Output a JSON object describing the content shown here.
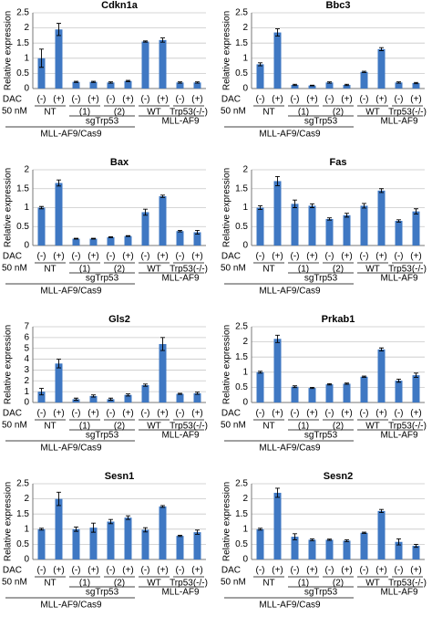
{
  "chart_data": [
    {
      "type": "bar",
      "title": "Cdkn1a",
      "y_label": "Relative expression",
      "color": "#3f78c3",
      "grid": true,
      "ylim": [
        0,
        2.5
      ],
      "yticks": [
        0,
        0.5,
        1,
        1.5,
        2,
        2.5
      ],
      "row_label": "DAC",
      "row_sublabel": "50 nM",
      "categories": [
        "(-)",
        "(+)",
        "(-)",
        "(+)",
        "(-)",
        "(+)",
        "(-)",
        "(+)",
        "(-)",
        "(+)"
      ],
      "groups": [
        "NT",
        "(1)",
        "(2)",
        "WT",
        "Trp53(-/-)"
      ],
      "subgroup": "sgTrp53",
      "lines": [
        "MLL-AF9/Cas9",
        "MLL-AF9"
      ],
      "values": [
        1.0,
        1.95,
        0.22,
        0.22,
        0.2,
        0.25,
        1.55,
        1.6,
        0.2,
        0.2
      ],
      "errors": [
        0.3,
        0.2,
        0.02,
        0.02,
        0.02,
        0.02,
        0.02,
        0.07,
        0.02,
        0.02
      ]
    },
    {
      "type": "bar",
      "title": "Bbc3",
      "y_label": "Relative expression",
      "color": "#3f78c3",
      "grid": true,
      "ylim": [
        0,
        2.5
      ],
      "yticks": [
        0,
        0.5,
        1,
        1.5,
        2,
        2.5
      ],
      "row_label": "DAC",
      "row_sublabel": "50 nM",
      "categories": [
        "(-)",
        "(+)",
        "(-)",
        "(+)",
        "(-)",
        "(+)",
        "(-)",
        "(+)",
        "(-)",
        "(+)"
      ],
      "groups": [
        "NT",
        "(1)",
        "(2)",
        "WT",
        "Trp53(-/-)"
      ],
      "subgroup": "sgTrp53",
      "lines": [
        "MLL-AF9/Cas9",
        "MLL-AF9"
      ],
      "values": [
        0.8,
        1.85,
        0.12,
        0.1,
        0.2,
        0.12,
        0.55,
        1.3,
        0.2,
        0.18
      ],
      "errors": [
        0.05,
        0.12,
        0.02,
        0.01,
        0.02,
        0.02,
        0.02,
        0.05,
        0.02,
        0.02
      ]
    },
    {
      "type": "bar",
      "title": "Bax",
      "y_label": "Relative expression",
      "color": "#3f78c3",
      "grid": true,
      "ylim": [
        0,
        2
      ],
      "yticks": [
        0,
        0.5,
        1,
        1.5,
        2
      ],
      "row_label": "DAC",
      "row_sublabel": "50 nM",
      "categories": [
        "(-)",
        "(+)",
        "(-)",
        "(+)",
        "(-)",
        "(+)",
        "(-)",
        "(+)",
        "(-)",
        "(+)"
      ],
      "groups": [
        "NT",
        "(1)",
        "(2)",
        "WT",
        "Trp53(-/-)"
      ],
      "subgroup": "sgTrp53",
      "lines": [
        "MLL-AF9/Cas9",
        "MLL-AF9"
      ],
      "values": [
        1.0,
        1.65,
        0.18,
        0.18,
        0.22,
        0.25,
        0.88,
        1.3,
        0.38,
        0.35
      ],
      "errors": [
        0.03,
        0.08,
        0.01,
        0.01,
        0.01,
        0.01,
        0.08,
        0.03,
        0.02,
        0.05
      ]
    },
    {
      "type": "bar",
      "title": "Fas",
      "y_label": "Relative expression",
      "color": "#3f78c3",
      "grid": true,
      "ylim": [
        0,
        2
      ],
      "yticks": [
        0,
        0.5,
        1,
        1.5,
        2
      ],
      "row_label": "DAC",
      "row_sublabel": "50 nM",
      "categories": [
        "(-)",
        "(+)",
        "(-)",
        "(+)",
        "(-)",
        "(+)",
        "(-)",
        "(+)",
        "(-)",
        "(+)"
      ],
      "groups": [
        "NT",
        "(1)",
        "(2)",
        "WT",
        "Trp53(-/-)"
      ],
      "subgroup": "sgTrp53",
      "lines": [
        "MLL-AF9/Cas9",
        "MLL-AF9"
      ],
      "values": [
        1.0,
        1.7,
        1.1,
        1.05,
        0.7,
        0.8,
        1.05,
        1.45,
        0.65,
        0.9
      ],
      "errors": [
        0.05,
        0.12,
        0.1,
        0.05,
        0.03,
        0.05,
        0.06,
        0.05,
        0.03,
        0.07
      ]
    },
    {
      "type": "bar",
      "title": "Gls2",
      "y_label": "Relative expression",
      "color": "#3f78c3",
      "grid": true,
      "ylim": [
        0,
        7
      ],
      "yticks": [
        0,
        1,
        2,
        3,
        4,
        5,
        6,
        7
      ],
      "row_label": "DAC",
      "row_sublabel": "50 nM",
      "categories": [
        "(-)",
        "(+)",
        "(-)",
        "(+)",
        "(-)",
        "(+)",
        "(-)",
        "(+)",
        "(-)",
        "(+)"
      ],
      "groups": [
        "NT",
        "(1)",
        "(2)",
        "WT",
        "Trp53(-/-)"
      ],
      "subgroup": "sgTrp53",
      "lines": [
        "MLL-AF9/Cas9",
        "MLL-AF9"
      ],
      "values": [
        1.0,
        3.6,
        0.3,
        0.6,
        0.3,
        0.7,
        1.6,
        5.4,
        0.8,
        0.85
      ],
      "errors": [
        0.3,
        0.4,
        0.1,
        0.1,
        0.1,
        0.1,
        0.1,
        0.6,
        0.05,
        0.1
      ]
    },
    {
      "type": "bar",
      "title": "Prkab1",
      "y_label": "Relative expression",
      "color": "#3f78c3",
      "grid": true,
      "ylim": [
        0,
        2.5
      ],
      "yticks": [
        0,
        0.5,
        1,
        1.5,
        2,
        2.5
      ],
      "row_label": "DAC",
      "row_sublabel": "50 nM",
      "categories": [
        "(-)",
        "(+)",
        "(-)",
        "(+)",
        "(-)",
        "(+)",
        "(-)",
        "(+)",
        "(-)",
        "(+)"
      ],
      "groups": [
        "NT",
        "(1)",
        "(2)",
        "WT",
        "Trp53(-/-)"
      ],
      "subgroup": "sgTrp53",
      "lines": [
        "MLL-AF9/Cas9",
        "MLL-AF9"
      ],
      "values": [
        1.0,
        2.1,
        0.52,
        0.48,
        0.6,
        0.62,
        0.85,
        1.75,
        0.72,
        0.9
      ],
      "errors": [
        0.03,
        0.12,
        0.03,
        0.02,
        0.02,
        0.02,
        0.02,
        0.05,
        0.05,
        0.07
      ]
    },
    {
      "type": "bar",
      "title": "Sesn1",
      "y_label": "Relative expression",
      "color": "#3f78c3",
      "grid": true,
      "ylim": [
        0,
        2.5
      ],
      "yticks": [
        0,
        0.5,
        1,
        1.5,
        2,
        2.5
      ],
      "row_label": "DAC",
      "row_sublabel": "50 nM",
      "categories": [
        "(-)",
        "(+)",
        "(-)",
        "(+)",
        "(-)",
        "(+)",
        "(-)",
        "(+)",
        "(-)",
        "(+)"
      ],
      "groups": [
        "NT",
        "(1)",
        "(2)",
        "WT",
        "Trp53(-/-)"
      ],
      "subgroup": "sgTrp53",
      "lines": [
        "MLL-AF9/Cas9",
        "MLL-AF9"
      ],
      "values": [
        1.0,
        2.0,
        1.0,
        1.05,
        1.25,
        1.38,
        0.98,
        1.75,
        0.78,
        0.9
      ],
      "errors": [
        0.03,
        0.22,
        0.07,
        0.15,
        0.07,
        0.06,
        0.07,
        0.03,
        0.02,
        0.07
      ]
    },
    {
      "type": "bar",
      "title": "Sesn2",
      "y_label": "Relative expression",
      "color": "#3f78c3",
      "grid": true,
      "ylim": [
        0,
        2.5
      ],
      "yticks": [
        0,
        0.5,
        1,
        1.5,
        2,
        2.5
      ],
      "row_label": "DAC",
      "row_sublabel": "50 nM",
      "categories": [
        "(-)",
        "(+)",
        "(-)",
        "(+)",
        "(-)",
        "(+)",
        "(-)",
        "(+)",
        "(-)",
        "(+)"
      ],
      "groups": [
        "NT",
        "(1)",
        "(2)",
        "WT",
        "Trp53(-/-)"
      ],
      "subgroup": "sgTrp53",
      "lines": [
        "MLL-AF9/Cas9",
        "MLL-AF9"
      ],
      "values": [
        1.0,
        2.2,
        0.75,
        0.65,
        0.65,
        0.62,
        0.88,
        1.6,
        0.58,
        0.45
      ],
      "errors": [
        0.03,
        0.15,
        0.1,
        0.03,
        0.02,
        0.03,
        0.02,
        0.05,
        0.1,
        0.05
      ]
    }
  ]
}
